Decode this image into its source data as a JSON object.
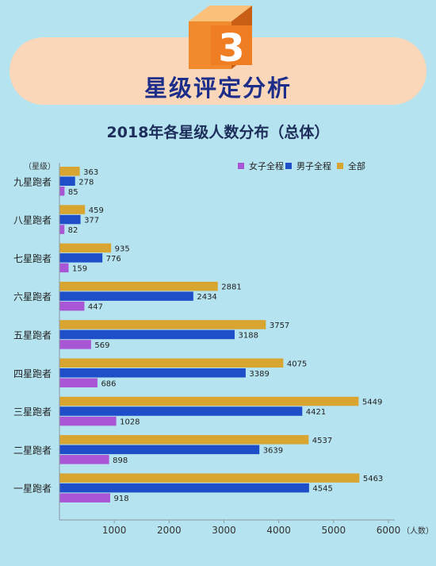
{
  "header": {
    "badge_number": "3",
    "section_title": "星级评定分析"
  },
  "colors": {
    "female": "#a855d6",
    "male": "#1e4fc9",
    "total": "#d8a531",
    "badge_orange": "#ef7e22",
    "title": "#1d2e8a"
  },
  "chart_data": {
    "type": "bar",
    "orientation": "horizontal",
    "title": "2018年各星级人数分布（总体）",
    "ylabel": "（星级）",
    "xlabel": "（人数）",
    "xlim": [
      0,
      6000
    ],
    "xticks": [
      1000,
      2000,
      3000,
      4000,
      5000,
      6000
    ],
    "legend_position": "top-right",
    "categories": [
      "九星跑者",
      "八星跑者",
      "七星跑者",
      "六星跑者",
      "五星跑者",
      "四星跑者",
      "三星跑者",
      "二星跑者",
      "一星跑者"
    ],
    "series": [
      {
        "name": "女子全程",
        "color": "#a855d6",
        "values": [
          85,
          82,
          159,
          447,
          569,
          686,
          1028,
          898,
          918
        ]
      },
      {
        "name": "男子全程",
        "color": "#1e4fc9",
        "values": [
          278,
          377,
          776,
          2434,
          3188,
          3389,
          4421,
          3639,
          4545
        ]
      },
      {
        "name": "全部",
        "color": "#d8a531",
        "values": [
          363,
          459,
          935,
          2881,
          3757,
          4075,
          5449,
          4537,
          5463
        ]
      }
    ]
  }
}
